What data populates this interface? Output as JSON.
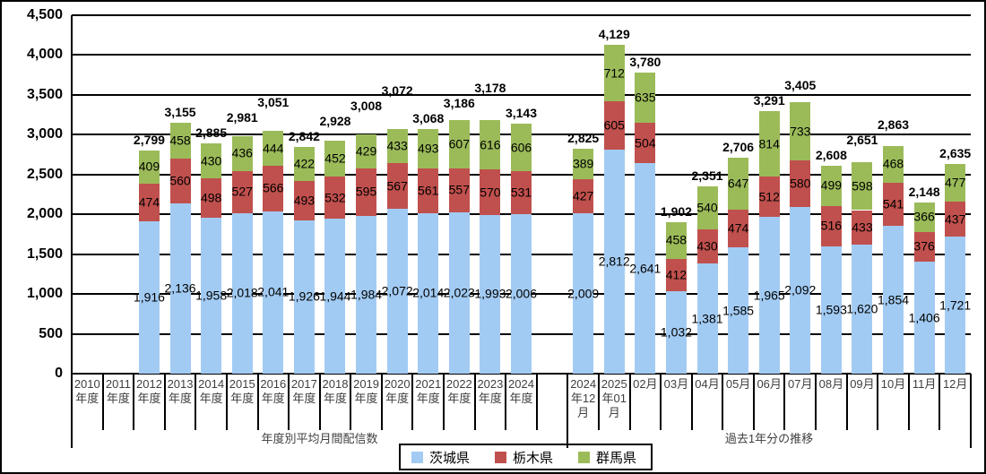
{
  "chart_data": {
    "type": "bar",
    "stacked": true,
    "title": "",
    "y_axis": {
      "min": 0,
      "max": 4500,
      "step": 500,
      "tick_labels": [
        "4,500",
        "4,000",
        "3,500",
        "3,000",
        "2,500",
        "2,000",
        "1,500",
        "1,000",
        "500",
        "0"
      ],
      "grid": true
    },
    "series": [
      {
        "key": "ibaraki",
        "name": "茨城県",
        "color": "#A2CBF3"
      },
      {
        "key": "tochigi",
        "name": "栃木県",
        "color": "#C0504D"
      },
      {
        "key": "gunma",
        "name": "群馬県",
        "color": "#9BBB59"
      }
    ],
    "legend_position": "bottom",
    "groups": [
      {
        "label": "年度別平均月間配信数",
        "categories": [
          {
            "label_lines": [
              "2010",
              "年度"
            ],
            "values": null,
            "total": null
          },
          {
            "label_lines": [
              "2011",
              "年度"
            ],
            "values": null,
            "total": null
          },
          {
            "label_lines": [
              "2012",
              "年度"
            ],
            "values": [
              1916,
              474,
              409
            ],
            "total": 2799
          },
          {
            "label_lines": [
              "2013",
              "年度"
            ],
            "values": [
              2136,
              560,
              458
            ],
            "total": 3155
          },
          {
            "label_lines": [
              "2014",
              "年度"
            ],
            "values": [
              1958,
              498,
              430
            ],
            "total": 2885
          },
          {
            "label_lines": [
              "2015",
              "年度"
            ],
            "values": [
              2018,
              527,
              436
            ],
            "total": 2981
          },
          {
            "label_lines": [
              "2016",
              "年度"
            ],
            "values": [
              2041,
              566,
              444
            ],
            "total": 3051
          },
          {
            "label_lines": [
              "2017",
              "年度"
            ],
            "values": [
              1926,
              493,
              422
            ],
            "total": 2842
          },
          {
            "label_lines": [
              "2018",
              "年度"
            ],
            "values": [
              1944,
              532,
              452
            ],
            "total": 2928
          },
          {
            "label_lines": [
              "2019",
              "年度"
            ],
            "values": [
              1984,
              595,
              429
            ],
            "total": 3008
          },
          {
            "label_lines": [
              "2020",
              "年度"
            ],
            "values": [
              2072,
              567,
              433
            ],
            "total": 3072
          },
          {
            "label_lines": [
              "2021",
              "年度"
            ],
            "values": [
              2014,
              561,
              493
            ],
            "total": 3068
          },
          {
            "label_lines": [
              "2022",
              "年度"
            ],
            "values": [
              2023,
              557,
              607
            ],
            "total": 3186
          },
          {
            "label_lines": [
              "2023",
              "年度"
            ],
            "values": [
              1993,
              570,
              616
            ],
            "total": 3178
          },
          {
            "label_lines": [
              "2024",
              "年度"
            ],
            "values": [
              2006,
              531,
              606
            ],
            "total": 3143
          },
          {
            "label_lines": [],
            "values": null,
            "total": null
          }
        ]
      },
      {
        "label": "過去1年分の推移",
        "categories": [
          {
            "label_lines": [
              "2024",
              "年12",
              "月"
            ],
            "values": [
              2009,
              427,
              389
            ],
            "total": 2825
          },
          {
            "label_lines": [
              "2025",
              "年01",
              "月"
            ],
            "values": [
              2812,
              605,
              712
            ],
            "total": 4129
          },
          {
            "label_lines": [
              "02月"
            ],
            "values": [
              2641,
              504,
              635
            ],
            "total": 3780
          },
          {
            "label_lines": [
              "03月"
            ],
            "values": [
              1032,
              412,
              458
            ],
            "total": 1902
          },
          {
            "label_lines": [
              "04月"
            ],
            "values": [
              1381,
              430,
              540
            ],
            "total": 2351
          },
          {
            "label_lines": [
              "05月"
            ],
            "values": [
              1585,
              474,
              647
            ],
            "total": 2706
          },
          {
            "label_lines": [
              "06月"
            ],
            "values": [
              1965,
              512,
              814
            ],
            "total": 3291
          },
          {
            "label_lines": [
              "07月"
            ],
            "values": [
              2092,
              580,
              733
            ],
            "total": 3405
          },
          {
            "label_lines": [
              "08月"
            ],
            "values": [
              1593,
              516,
              499
            ],
            "total": 2608
          },
          {
            "label_lines": [
              "09月"
            ],
            "values": [
              1620,
              433,
              598
            ],
            "total": 2651
          },
          {
            "label_lines": [
              "10月"
            ],
            "values": [
              1854,
              541,
              468
            ],
            "total": 2863
          },
          {
            "label_lines": [
              "11月"
            ],
            "values": [
              1406,
              376,
              366
            ],
            "total": 2148
          },
          {
            "label_lines": [
              "12月"
            ],
            "values": [
              1721,
              437,
              477
            ],
            "total": 2635
          }
        ]
      }
    ]
  }
}
